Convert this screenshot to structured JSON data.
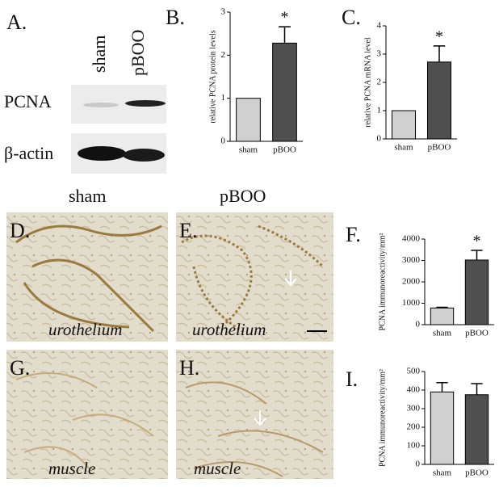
{
  "panel_labels": {
    "a": "A.",
    "b": "B.",
    "c": "C.",
    "d": "D.",
    "e": "E.",
    "f": "F.",
    "g": "G.",
    "h": "H.",
    "i": "I."
  },
  "blot": {
    "lanes": [
      "sham",
      "pBOO"
    ],
    "rows": [
      "PCNA",
      "β-actin"
    ]
  },
  "column_headers": [
    "sham",
    "pBOO"
  ],
  "tissue_labels": {
    "d": "urothelium",
    "e": "urothelium",
    "g": "muscle",
    "h": "muscle"
  },
  "chart_data": [
    {
      "type": "bar",
      "y_label": "relative PCNA protein levels",
      "categories": [
        "sham",
        "pBOO"
      ],
      "values": [
        1,
        2.28
      ],
      "errors": [
        0,
        0.38
      ],
      "colors": [
        "#d0d0d0",
        "#4f4f4f"
      ],
      "ylim": [
        0,
        3
      ],
      "yticks": [
        0,
        1,
        2,
        3
      ],
      "annotation": "*"
    },
    {
      "type": "bar",
      "y_label": "relative PCNA mRNA level",
      "categories": [
        "sham",
        "pBOO"
      ],
      "values": [
        1,
        2.72
      ],
      "errors": [
        0,
        0.57
      ],
      "colors": [
        "#d0d0d0",
        "#4f4f4f"
      ],
      "ylim": [
        0,
        4
      ],
      "yticks": [
        0,
        1,
        2,
        3,
        4
      ],
      "annotation": "*"
    },
    {
      "type": "bar",
      "y_label": "PCNA immunoreactivity/mm²",
      "categories": [
        "sham",
        "pBOO"
      ],
      "values": [
        780,
        3020
      ],
      "errors": [
        30,
        450
      ],
      "colors": [
        "#d0d0d0",
        "#4f4f4f"
      ],
      "ylim": [
        0,
        4000
      ],
      "yticks": [
        0,
        1000,
        2000,
        3000,
        4000
      ],
      "annotation": "*"
    },
    {
      "type": "bar",
      "y_label": "PCNA immunoreactivity/mm²",
      "categories": [
        "sham",
        "pBOO"
      ],
      "values": [
        390,
        375
      ],
      "errors": [
        50,
        60
      ],
      "colors": [
        "#d0d0d0",
        "#4f4f4f"
      ],
      "ylim": [
        0,
        500
      ],
      "yticks": [
        0,
        100,
        200,
        300,
        400,
        500
      ]
    }
  ]
}
